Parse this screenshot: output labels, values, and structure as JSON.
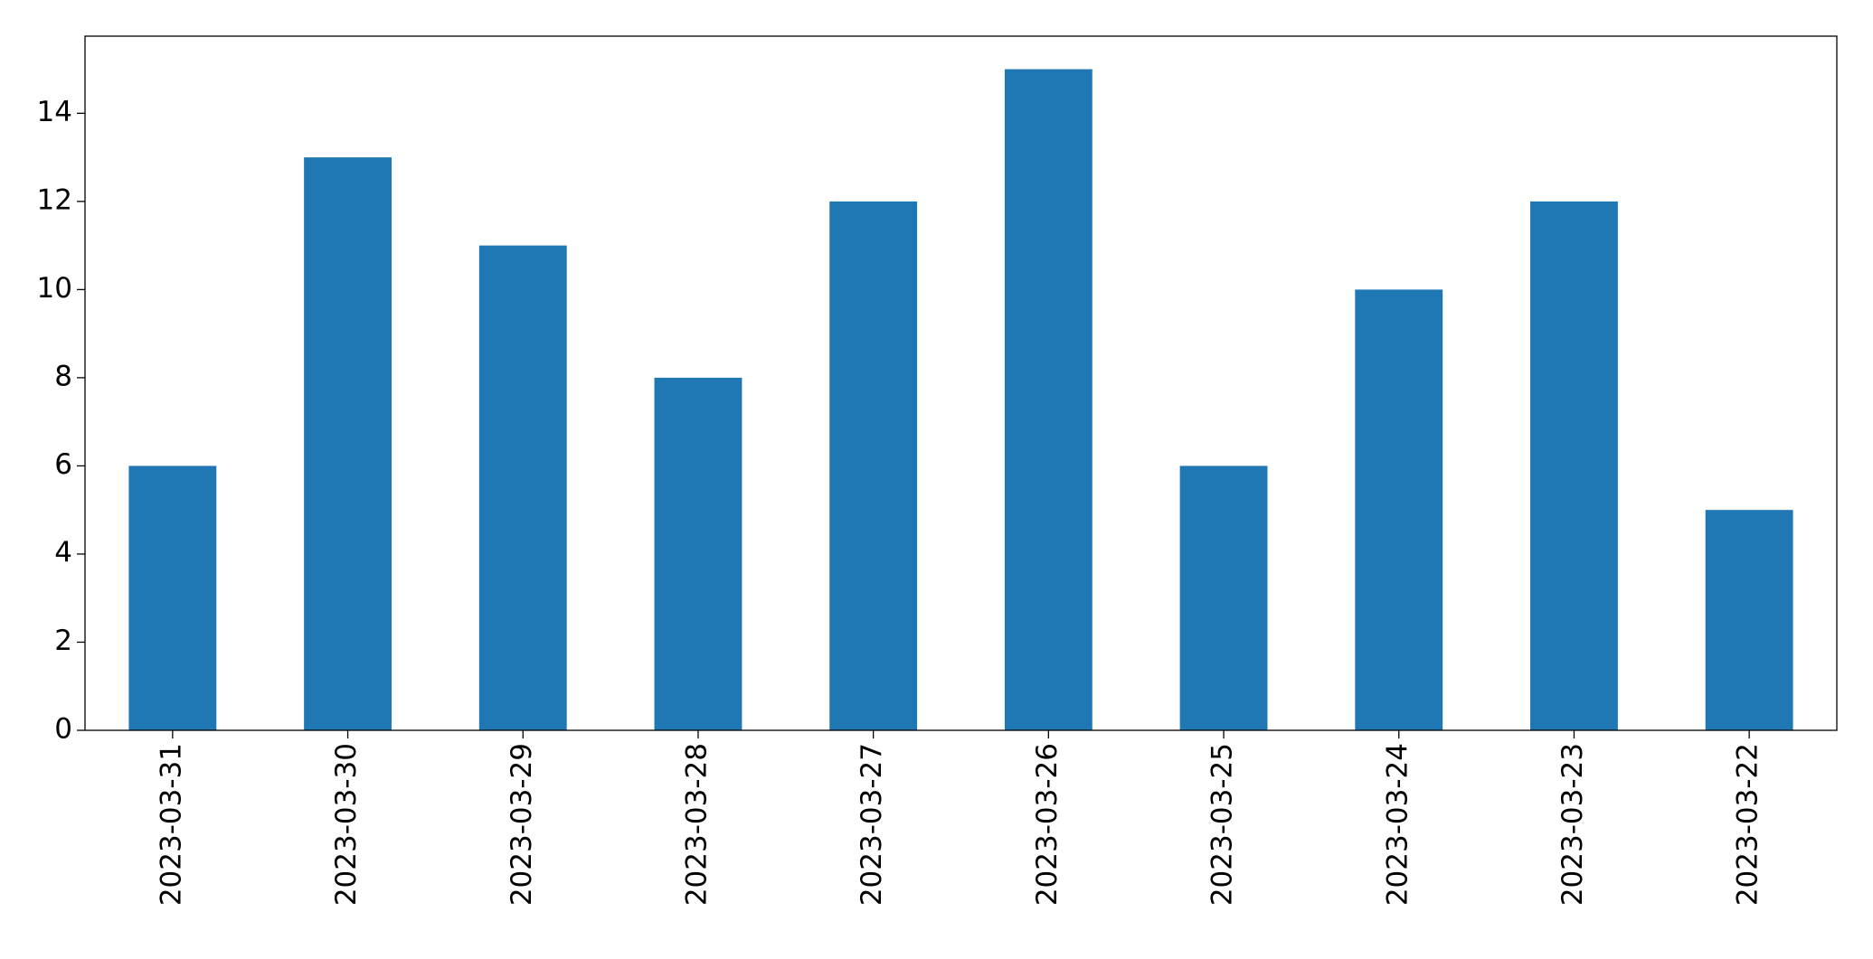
{
  "chart_data": {
    "type": "bar",
    "categories": [
      "2023-03-31",
      "2023-03-30",
      "2023-03-29",
      "2023-03-28",
      "2023-03-27",
      "2023-03-26",
      "2023-03-25",
      "2023-03-24",
      "2023-03-23",
      "2023-03-22"
    ],
    "values": [
      6,
      13,
      11,
      8,
      12,
      15,
      6,
      10,
      12,
      5
    ],
    "color": "#1f77b4",
    "ylim": [
      0,
      15.75
    ],
    "yticks": [
      0,
      2,
      4,
      6,
      8,
      10,
      12,
      14
    ],
    "grid": false
  }
}
